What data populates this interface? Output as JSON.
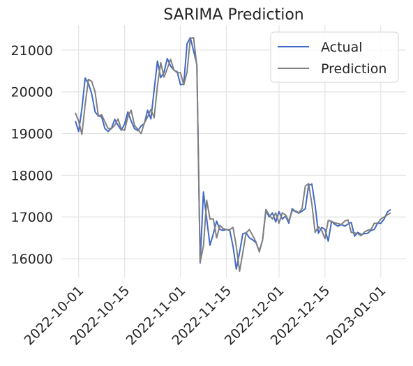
{
  "chart_data": {
    "type": "line",
    "title": "SARIMA Prediction",
    "xlabel": "",
    "ylabel": "",
    "x_start": "2022-09-30",
    "x_end": "2023-01-04",
    "x_ticks": [
      "2022-10-01",
      "2022-10-15",
      "2022-11-01",
      "2022-11-15",
      "2022-12-01",
      "2022-12-15",
      "2023-01-01"
    ],
    "y_ticks": [
      16000,
      17000,
      18000,
      19000,
      20000,
      21000
    ],
    "ylim": [
      15550,
      21600
    ],
    "grid": true,
    "legend_position": "top-right",
    "colors": {
      "Actual": "#4169c7",
      "Prediction": "#808080"
    },
    "series": [
      {
        "name": "Actual",
        "x": [
          "2022-09-30",
          "2022-10-01",
          "2022-10-02",
          "2022-10-03",
          "2022-10-04",
          "2022-10-05",
          "2022-10-06",
          "2022-10-07",
          "2022-10-08",
          "2022-10-09",
          "2022-10-10",
          "2022-10-11",
          "2022-10-12",
          "2022-10-13",
          "2022-10-14",
          "2022-10-15",
          "2022-10-16",
          "2022-10-17",
          "2022-10-18",
          "2022-10-19",
          "2022-10-20",
          "2022-10-21",
          "2022-10-22",
          "2022-10-23",
          "2022-10-24",
          "2022-10-25",
          "2022-10-26",
          "2022-10-27",
          "2022-10-28",
          "2022-10-29",
          "2022-10-30",
          "2022-10-31",
          "2022-11-01",
          "2022-11-02",
          "2022-11-03",
          "2022-11-04",
          "2022-11-05",
          "2022-11-06",
          "2022-11-07",
          "2022-11-08",
          "2022-11-09",
          "2022-11-10",
          "2022-11-11",
          "2022-11-12",
          "2022-11-13",
          "2022-11-14",
          "2022-11-15",
          "2022-11-16",
          "2022-11-17",
          "2022-11-18",
          "2022-11-19",
          "2022-11-20",
          "2022-11-21",
          "2022-11-22",
          "2022-11-23",
          "2022-11-24",
          "2022-11-25",
          "2022-11-26",
          "2022-11-27",
          "2022-11-28",
          "2022-11-29",
          "2022-11-30",
          "2022-12-01",
          "2022-12-02",
          "2022-12-03",
          "2022-12-04",
          "2022-12-05",
          "2022-12-06",
          "2022-12-07",
          "2022-12-08",
          "2022-12-09",
          "2022-12-10",
          "2022-12-11",
          "2022-12-12",
          "2022-12-13",
          "2022-12-14",
          "2022-12-15",
          "2022-12-16",
          "2022-12-17",
          "2022-12-18",
          "2022-12-19",
          "2022-12-20",
          "2022-12-21",
          "2022-12-22",
          "2022-12-23",
          "2022-12-24",
          "2022-12-25",
          "2022-12-26",
          "2022-12-27",
          "2022-12-28",
          "2022-12-29",
          "2022-12-30",
          "2022-12-31",
          "2023-01-01",
          "2023-01-02",
          "2023-01-03",
          "2023-01-04"
        ],
        "values": [
          19300,
          19050,
          19600,
          20330,
          20200,
          19950,
          19520,
          19420,
          19400,
          19120,
          19050,
          19130,
          19340,
          19200,
          19080,
          19230,
          19520,
          19300,
          19120,
          19070,
          19180,
          19240,
          19560,
          19350,
          20050,
          20740,
          20340,
          20470,
          20800,
          20620,
          20520,
          20480,
          20170,
          20190,
          21150,
          21300,
          20980,
          20650,
          15900,
          17600,
          16950,
          16320,
          16600,
          16900,
          16700,
          16680,
          16700,
          16680,
          16300,
          15750,
          16150,
          16600,
          16620,
          16500,
          16450,
          16380,
          16180,
          16450,
          17160,
          17000,
          17100,
          16880,
          17130,
          16950,
          17020,
          16850,
          17200,
          17130,
          17090,
          17140,
          17200,
          17760,
          17790,
          17280,
          16610,
          16750,
          16700,
          16420,
          16900,
          16820,
          16780,
          16820,
          16780,
          16830,
          16870,
          16540,
          16630,
          16580,
          16600,
          16610,
          16680,
          16700,
          16850,
          16850,
          16950,
          17120,
          17180
        ]
      },
      {
        "name": "Prediction",
        "x": [
          "2022-09-30",
          "2022-10-01",
          "2022-10-02",
          "2022-10-03",
          "2022-10-04",
          "2022-10-05",
          "2022-10-06",
          "2022-10-07",
          "2022-10-08",
          "2022-10-09",
          "2022-10-10",
          "2022-10-11",
          "2022-10-12",
          "2022-10-13",
          "2022-10-14",
          "2022-10-15",
          "2022-10-16",
          "2022-10-17",
          "2022-10-18",
          "2022-10-19",
          "2022-10-20",
          "2022-10-21",
          "2022-10-22",
          "2022-10-23",
          "2022-10-24",
          "2022-10-25",
          "2022-10-26",
          "2022-10-27",
          "2022-10-28",
          "2022-10-29",
          "2022-10-30",
          "2022-10-31",
          "2022-11-01",
          "2022-11-02",
          "2022-11-03",
          "2022-11-04",
          "2022-11-05",
          "2022-11-06",
          "2022-11-07",
          "2022-11-08",
          "2022-11-09",
          "2022-11-10",
          "2022-11-11",
          "2022-11-12",
          "2022-11-13",
          "2022-11-14",
          "2022-11-15",
          "2022-11-16",
          "2022-11-17",
          "2022-11-18",
          "2022-11-19",
          "2022-11-20",
          "2022-11-21",
          "2022-11-22",
          "2022-11-23",
          "2022-11-24",
          "2022-11-25",
          "2022-11-26",
          "2022-11-27",
          "2022-11-28",
          "2022-11-29",
          "2022-11-30",
          "2022-12-01",
          "2022-12-02",
          "2022-12-03",
          "2022-12-04",
          "2022-12-05",
          "2022-12-06",
          "2022-12-07",
          "2022-12-08",
          "2022-12-09",
          "2022-12-10",
          "2022-12-11",
          "2022-12-12",
          "2022-12-13",
          "2022-12-14",
          "2022-12-15",
          "2022-12-16",
          "2022-12-17",
          "2022-12-18",
          "2022-12-19",
          "2022-12-20",
          "2022-12-21",
          "2022-12-22",
          "2022-12-23",
          "2022-12-24",
          "2022-12-25",
          "2022-12-26",
          "2022-12-27",
          "2022-12-28",
          "2022-12-29",
          "2022-12-30",
          "2022-12-31",
          "2023-01-01",
          "2023-01-02",
          "2023-01-03",
          "2023-01-04"
        ],
        "values": [
          19500,
          19300,
          18980,
          19700,
          20300,
          20250,
          20000,
          19420,
          19450,
          19280,
          19120,
          19120,
          19200,
          19350,
          19100,
          19080,
          19400,
          19560,
          19200,
          19100,
          19000,
          19250,
          19400,
          19580,
          19380,
          20150,
          20700,
          20350,
          20560,
          20780,
          20520,
          20460,
          20460,
          20170,
          20470,
          21280,
          21300,
          20610,
          15920,
          16300,
          17400,
          16950,
          16950,
          16500,
          16800,
          16720,
          16700,
          16700,
          16750,
          16300,
          15700,
          16150,
          16620,
          16700,
          16550,
          16400,
          16160,
          16450,
          17180,
          17050,
          16950,
          17100,
          16850,
          17100,
          17050,
          16900,
          17150,
          17150,
          17100,
          17200,
          17740,
          17800,
          17320,
          16630,
          16770,
          16680,
          16480,
          16920,
          16890,
          16860,
          16840,
          16820,
          16900,
          16930,
          16630,
          16620,
          16600,
          16550,
          16640,
          16680,
          16700,
          16850,
          16850,
          16950,
          17000,
          17050,
          17100
        ]
      }
    ]
  }
}
